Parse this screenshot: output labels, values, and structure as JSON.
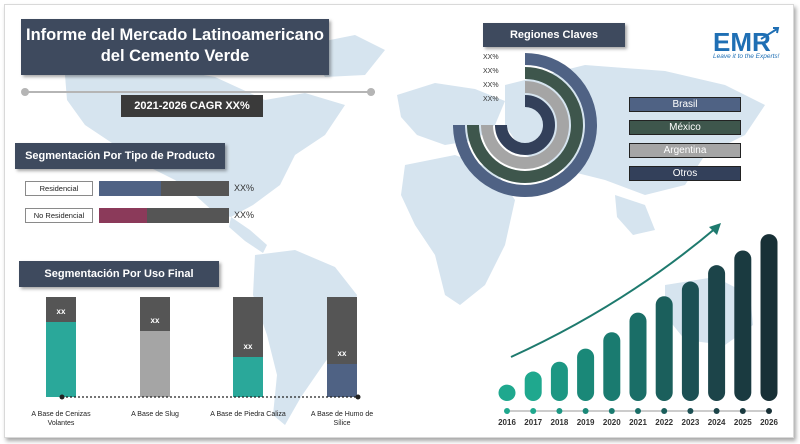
{
  "title": "Informe del Mercado Latinoamericano del Cemento Verde",
  "cagr": "2021-2026 CAGR XX%",
  "product_section": {
    "header": "Segmentación Por Tipo de Producto",
    "items": [
      {
        "label": "Residencial",
        "value_text": "XX%",
        "fill_fraction": 0.48,
        "color": "#4f6284"
      },
      {
        "label": "No Residencial",
        "value_text": "XX%",
        "fill_fraction": 0.37,
        "color": "#8b3a5a"
      }
    ]
  },
  "enduse_section": {
    "header": "Segmentación Por Uso Final",
    "items": [
      {
        "label": "A Base de Cenizas Volantes",
        "value_text": "xx",
        "fill_fraction": 0.75,
        "color": "#2aa89a"
      },
      {
        "label": "A Base de Slug",
        "value_text": "xx",
        "fill_fraction": 0.66,
        "color": "#a5a5a5"
      },
      {
        "label": "A Base de Piedra Caliza",
        "value_text": "xx",
        "fill_fraction": 0.4,
        "color": "#2aa89a"
      },
      {
        "label": "A Base de Humo de Sílice",
        "value_text": "xx",
        "fill_fraction": 0.33,
        "color": "#4f6284"
      }
    ]
  },
  "regions": {
    "header": "Regiones Claves",
    "items": [
      {
        "label": "Brasil",
        "value_text": "XX%",
        "color": "#4f6284"
      },
      {
        "label": "México",
        "value_text": "XX%",
        "color": "#3e564c"
      },
      {
        "label": "Argentina",
        "value_text": "XX%",
        "color": "#a5a5a5"
      },
      {
        "label": "Otros",
        "value_text": "XX%",
        "color": "#33405a"
      }
    ]
  },
  "logo": {
    "text": "EMR",
    "tagline": "Leave it to the Experts!"
  },
  "chart_data": {
    "type": "bar",
    "title": "",
    "categories": [
      "2016",
      "2017",
      "2018",
      "2019",
      "2020",
      "2021",
      "2022",
      "2023",
      "2024",
      "2025",
      "2026"
    ],
    "values": [
      1.0,
      1.8,
      2.4,
      3.2,
      4.2,
      5.4,
      6.4,
      7.3,
      8.3,
      9.2,
      10.2
    ],
    "ylim": [
      0,
      11
    ],
    "bar_colors": [
      "#1fa88e",
      "#1fa88e",
      "#1c9783",
      "#1a8878",
      "#1a7b70",
      "#1a6e67",
      "#1b5f5c",
      "#1c5054",
      "#1c4449",
      "#1a3a40",
      "#183036"
    ],
    "trend_arrow": true
  },
  "colors": {
    "dark_header": "#3e4a5e",
    "map": "#d6e4ef"
  }
}
